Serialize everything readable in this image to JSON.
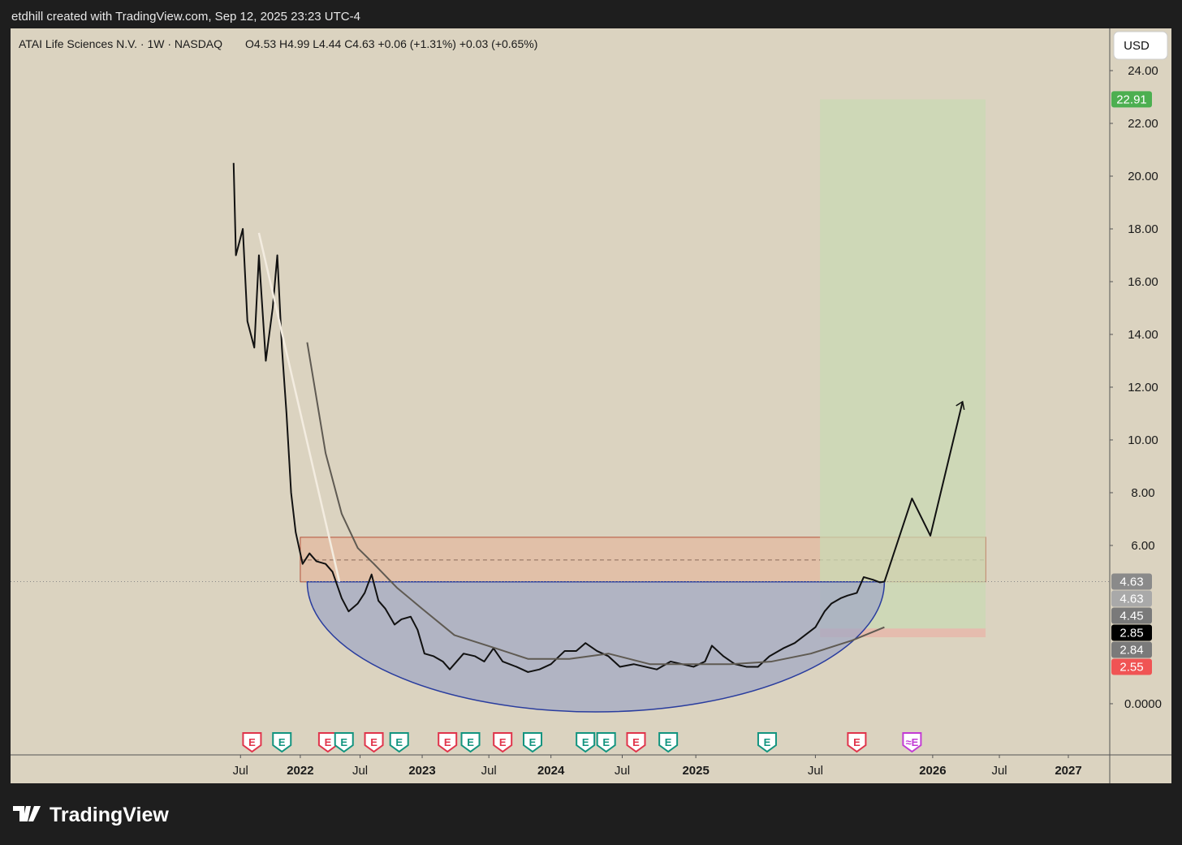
{
  "header": {
    "text": "etdhill created with TradingView.com, Sep 12, 2025 23:23 UTC-4",
    "brand": "TradingView"
  },
  "chart_data": {
    "type": "line",
    "title": "ATAI Life Sciences N.V. · 1W · NASDAQ",
    "ohlc_text": "O4.53  H4.99  L4.44  C4.63  +0.06 (+1.31%)  +0.03 (+0.65%)",
    "currency": "USD",
    "xlim": [
      0,
      478
    ],
    "xticks": [
      {
        "value": 100,
        "label": "Jul"
      },
      {
        "value": 126,
        "label": "2022"
      },
      {
        "value": 152,
        "label": "Jul"
      },
      {
        "value": 179,
        "label": "2023"
      },
      {
        "value": 208,
        "label": "Jul"
      },
      {
        "value": 235,
        "label": "2024"
      },
      {
        "value": 266,
        "label": "Jul"
      },
      {
        "value": 298,
        "label": "2025"
      },
      {
        "value": 350,
        "label": "Jul"
      },
      {
        "value": 401,
        "label": "2026"
      },
      {
        "value": 430,
        "label": "Jul"
      },
      {
        "value": 460,
        "label": "2027"
      }
    ],
    "ylim": [
      -1.94,
      25.6
    ],
    "yticks": [
      {
        "value": 24,
        "label": "24.00"
      },
      {
        "value": 22,
        "label": "22.00"
      },
      {
        "value": 20,
        "label": "20.00"
      },
      {
        "value": 18,
        "label": "18.00"
      },
      {
        "value": 16,
        "label": "16.00"
      },
      {
        "value": 14,
        "label": "14.00"
      },
      {
        "value": 12,
        "label": "12.00"
      },
      {
        "value": 10,
        "label": "10.00"
      },
      {
        "value": 8,
        "label": "8.00"
      },
      {
        "value": 6,
        "label": "6.00"
      },
      {
        "value": 0,
        "label": "0.0000"
      }
    ],
    "series": [
      {
        "color": "#111111",
        "x": [
          97,
          98,
          101,
          103,
          106,
          108,
          111,
          114,
          116,
          118,
          120,
          122,
          124,
          127,
          130,
          133,
          137,
          140,
          144,
          147,
          151,
          154,
          157,
          160,
          163,
          167,
          170,
          174,
          177,
          180,
          184,
          188,
          191,
          197,
          202,
          206,
          210,
          214,
          220,
          225,
          230,
          235,
          241,
          246,
          250,
          255,
          260,
          265,
          271,
          276,
          281,
          287,
          292,
          297,
          302,
          305,
          310,
          315,
          320,
          325,
          330,
          336,
          341,
          347,
          350,
          354,
          357,
          361,
          364,
          368,
          371,
          375,
          378,
          380
        ],
        "values": [
          20.5,
          17,
          18,
          14.5,
          13.5,
          17,
          13,
          15,
          17,
          13.5,
          11,
          8,
          6.5,
          5.3,
          5.7,
          5.4,
          5.3,
          5.0,
          4.0,
          3.5,
          3.8,
          4.2,
          4.9,
          3.9,
          3.6,
          3.0,
          3.2,
          3.3,
          2.8,
          1.9,
          1.8,
          1.6,
          1.3,
          1.9,
          1.8,
          1.6,
          2.1,
          1.6,
          1.4,
          1.2,
          1.3,
          1.5,
          2.0,
          2.0,
          2.3,
          2.0,
          1.8,
          1.4,
          1.5,
          1.4,
          1.3,
          1.6,
          1.5,
          1.4,
          1.6,
          2.2,
          1.8,
          1.5,
          1.4,
          1.4,
          1.8,
          2.1,
          2.3,
          2.7,
          2.9,
          3.5,
          3.8,
          4.0,
          4.1,
          4.2,
          4.8,
          4.7,
          4.6,
          4.63
        ]
      },
      {
        "color": "#5f5a52",
        "x": [
          129,
          137,
          144,
          151,
          158,
          168,
          179,
          193,
          211,
          225,
          243,
          260,
          278,
          296,
          313,
          331,
          348,
          366,
          380
        ],
        "values": [
          13.7,
          9.5,
          7.2,
          5.9,
          5.3,
          4.4,
          3.6,
          2.6,
          2.1,
          1.7,
          1.7,
          1.9,
          1.5,
          1.5,
          1.5,
          1.6,
          1.9,
          2.4,
          2.9
        ]
      },
      {
        "color": "#f3ece0",
        "x": [
          108,
          143
        ],
        "values": [
          17.85,
          4.62
        ]
      },
      {
        "color": "#111111",
        "x": [
          380,
          392,
          400,
          414
        ],
        "values": [
          4.62,
          7.78,
          6.37,
          11.45
        ]
      }
    ],
    "cup": {
      "x": [
        129,
        255,
        380
      ],
      "values": [
        4.62,
        -0.31,
        4.62
      ],
      "color": "#9fa7c4"
    },
    "zones": [
      {
        "x": [
          126,
          424
        ],
        "values": [
          4.62,
          6.31
        ],
        "color": "#e3b9a0",
        "midline": 5.45
      },
      {
        "x": [
          352,
          424
        ],
        "values": [
          2.85,
          22.91
        ],
        "color": "#c9d9b4"
      },
      {
        "x": [
          352,
          424
        ],
        "values": [
          2.52,
          2.85
        ],
        "color": "#e8b4a8"
      }
    ],
    "price_labels": [
      {
        "value": 22.91,
        "color": "#4caf50"
      },
      {
        "value": 4.63,
        "color": "#8a8a8a"
      },
      {
        "value": 4.63,
        "color": "#a9a9a9"
      },
      {
        "value": 4.45,
        "color": "#7a7a7a"
      },
      {
        "value": 2.85,
        "color": "#000000"
      },
      {
        "value": 2.84,
        "color": "#7a7a7a"
      },
      {
        "value": 2.55,
        "color": "#f05454"
      }
    ],
    "events": [
      {
        "x": 105,
        "label": "E",
        "color": "#e0344b"
      },
      {
        "x": 118,
        "label": "E",
        "color": "#12947f"
      },
      {
        "x": 138,
        "label": "E",
        "color": "#e0344b"
      },
      {
        "x": 145,
        "label": "E",
        "color": "#12947f"
      },
      {
        "x": 158,
        "label": "E",
        "color": "#e0344b"
      },
      {
        "x": 169,
        "label": "E",
        "color": "#12947f"
      },
      {
        "x": 190,
        "label": "E",
        "color": "#e0344b"
      },
      {
        "x": 200,
        "label": "E",
        "color": "#12947f"
      },
      {
        "x": 214,
        "label": "E",
        "color": "#e0344b"
      },
      {
        "x": 227,
        "label": "E",
        "color": "#12947f"
      },
      {
        "x": 250,
        "label": "E",
        "color": "#12947f"
      },
      {
        "x": 259,
        "label": "E",
        "color": "#12947f"
      },
      {
        "x": 272,
        "label": "E",
        "color": "#e0344b"
      },
      {
        "x": 286,
        "label": "E",
        "color": "#12947f"
      },
      {
        "x": 329,
        "label": "E",
        "color": "#12947f"
      },
      {
        "x": 368,
        "label": "E",
        "color": "#e0344b"
      },
      {
        "x": 392,
        "label": "≈E",
        "color": "#c23bd4"
      }
    ]
  }
}
